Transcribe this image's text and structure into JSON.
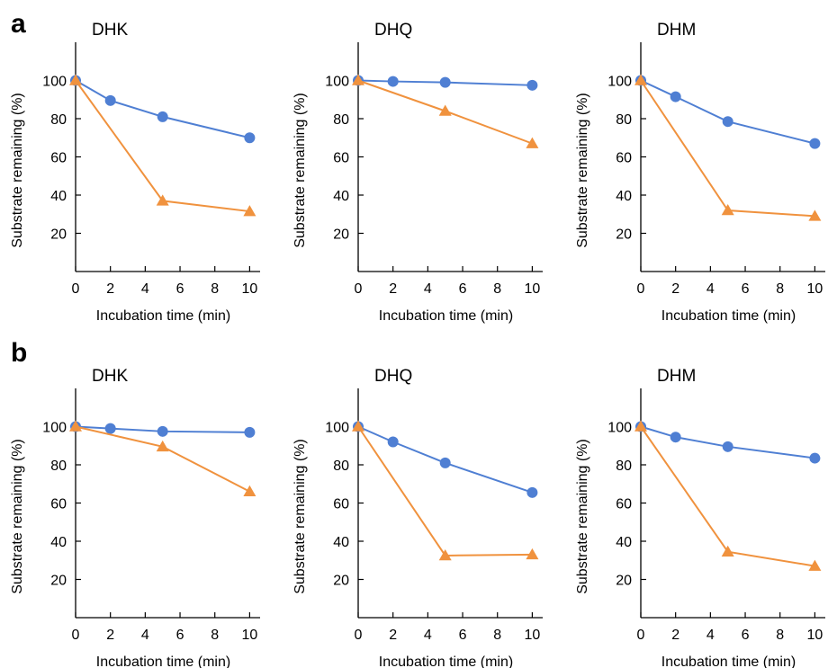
{
  "panel_labels": [
    "a",
    "b"
  ],
  "colors": {
    "series_1": "#4f7fd3",
    "series_2": "#f0923e"
  },
  "chart_data": [
    {
      "panel": "a",
      "type": "line",
      "title": "DHK",
      "xlabel": "Incubation time (min)",
      "ylabel": "Substrate remaining (%)",
      "xlim": [
        0,
        10.6
      ],
      "ylim": [
        0,
        120
      ],
      "xticks": [
        0,
        2,
        4,
        6,
        8,
        10
      ],
      "yticks": [
        20,
        40,
        60,
        80,
        100
      ],
      "grid": false,
      "legend": "none",
      "series": [
        {
          "marker": "circle",
          "color": "#4f7fd3",
          "x": [
            0,
            2,
            5,
            10
          ],
          "values": [
            100,
            89.5,
            81,
            70
          ]
        },
        {
          "marker": "triangle",
          "color": "#f0923e",
          "x": [
            0,
            5,
            10
          ],
          "values": [
            100,
            37,
            31.5
          ]
        }
      ]
    },
    {
      "panel": "a",
      "type": "line",
      "title": "DHQ",
      "xlabel": "Incubation time (min)",
      "ylabel": "Substrate remaining (%)",
      "xlim": [
        0,
        10.6
      ],
      "ylim": [
        0,
        120
      ],
      "xticks": [
        0,
        2,
        4,
        6,
        8,
        10
      ],
      "yticks": [
        20,
        40,
        60,
        80,
        100
      ],
      "grid": false,
      "legend": "none",
      "series": [
        {
          "marker": "circle",
          "color": "#4f7fd3",
          "x": [
            0,
            2,
            5,
            10
          ],
          "values": [
            100,
            99.5,
            99,
            97.5
          ]
        },
        {
          "marker": "triangle",
          "color": "#f0923e",
          "x": [
            0,
            5,
            10
          ],
          "values": [
            100,
            84,
            67
          ]
        }
      ]
    },
    {
      "panel": "a",
      "type": "line",
      "title": "DHM",
      "xlabel": "Incubation time (min)",
      "ylabel": "Substrate remaining (%)",
      "xlim": [
        0,
        10.6
      ],
      "ylim": [
        0,
        120
      ],
      "xticks": [
        0,
        2,
        4,
        6,
        8,
        10
      ],
      "yticks": [
        20,
        40,
        60,
        80,
        100
      ],
      "grid": false,
      "legend": "none",
      "series": [
        {
          "marker": "circle",
          "color": "#4f7fd3",
          "x": [
            0,
            2,
            5,
            10
          ],
          "values": [
            100,
            91.5,
            78.5,
            67
          ]
        },
        {
          "marker": "triangle",
          "color": "#f0923e",
          "x": [
            0,
            5,
            10
          ],
          "values": [
            100,
            32,
            29
          ]
        }
      ]
    },
    {
      "panel": "b",
      "type": "line",
      "title": "DHK",
      "xlabel": "Incubation time (min)",
      "ylabel": "Substrate remaining (%)",
      "xlim": [
        0,
        10.6
      ],
      "ylim": [
        0,
        120
      ],
      "xticks": [
        0,
        2,
        4,
        6,
        8,
        10
      ],
      "yticks": [
        20,
        40,
        60,
        80,
        100
      ],
      "grid": false,
      "legend": "none",
      "series": [
        {
          "marker": "circle",
          "color": "#4f7fd3",
          "x": [
            0,
            2,
            5,
            10
          ],
          "values": [
            100,
            99,
            97.5,
            97
          ]
        },
        {
          "marker": "triangle",
          "color": "#f0923e",
          "x": [
            0,
            5,
            10
          ],
          "values": [
            100,
            89.5,
            66
          ]
        }
      ]
    },
    {
      "panel": "b",
      "type": "line",
      "title": "DHQ",
      "xlabel": "Incubation time (min)",
      "ylabel": "Substrate remaining (%)",
      "xlim": [
        0,
        10.6
      ],
      "ylim": [
        0,
        120
      ],
      "xticks": [
        0,
        2,
        4,
        6,
        8,
        10
      ],
      "yticks": [
        20,
        40,
        60,
        80,
        100
      ],
      "grid": false,
      "legend": "none",
      "series": [
        {
          "marker": "circle",
          "color": "#4f7fd3",
          "x": [
            0,
            2,
            5,
            10
          ],
          "values": [
            100,
            92,
            81,
            65.5
          ]
        },
        {
          "marker": "triangle",
          "color": "#f0923e",
          "x": [
            0,
            5,
            10
          ],
          "values": [
            100,
            32.5,
            33
          ]
        }
      ]
    },
    {
      "panel": "b",
      "type": "line",
      "title": "DHM",
      "xlabel": "Incubation time (min)",
      "ylabel": "Substrate remaining (%)",
      "xlim": [
        0,
        10.6
      ],
      "ylim": [
        0,
        120
      ],
      "xticks": [
        0,
        2,
        4,
        6,
        8,
        10
      ],
      "yticks": [
        20,
        40,
        60,
        80,
        100
      ],
      "grid": false,
      "legend": "none",
      "series": [
        {
          "marker": "circle",
          "color": "#4f7fd3",
          "x": [
            0,
            2,
            5,
            10
          ],
          "values": [
            100,
            94.5,
            89.5,
            83.5
          ]
        },
        {
          "marker": "triangle",
          "color": "#f0923e",
          "x": [
            0,
            5,
            10
          ],
          "values": [
            100,
            34.5,
            27
          ]
        }
      ]
    }
  ]
}
